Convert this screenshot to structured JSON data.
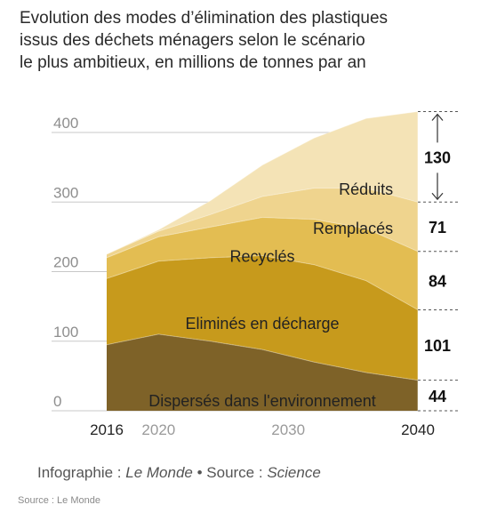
{
  "title_lines": [
    "Evolution des modes d’élimination des plastiques",
    "issus des déchets ménagers selon le scénario",
    "le plus ambitieux, en millions de tonnes par an"
  ],
  "credit": {
    "prefix": "Infographie : ",
    "outlet": "Le Monde",
    "sep": " • Source : ",
    "source": "Science"
  },
  "footer_source": "Source : Le Monde",
  "colors": {
    "disperses": "#7e6228",
    "elimines": "#c79a1c",
    "recycles": "#e3bd52",
    "remplaces": "#efd48e",
    "reduits": "#f4e3b6",
    "dashed_line": "#555555",
    "grid": "#c8c8c8"
  },
  "chart_data": {
    "type": "area",
    "stacked": true,
    "x": [
      2016,
      2020,
      2024,
      2028,
      2032,
      2036,
      2040
    ],
    "ylim": [
      0,
      400
    ],
    "yticks": [
      0,
      100,
      200,
      300,
      400
    ],
    "xticks": [
      {
        "value": 2016,
        "label": "2016",
        "strong": true
      },
      {
        "value": 2020,
        "label": "2020",
        "strong": false
      },
      {
        "value": 2030,
        "label": "2030",
        "strong": false
      },
      {
        "value": 2040,
        "label": "2040",
        "strong": true
      }
    ],
    "series": [
      {
        "name": "Dispersés dans l'environnement",
        "key": "disperses",
        "values": [
          95,
          110,
          100,
          88,
          70,
          55,
          44
        ],
        "label_at": [
          2028,
          14
        ]
      },
      {
        "name": "Eliminés en décharge",
        "key": "elimines",
        "values": [
          95,
          105,
          120,
          135,
          140,
          132,
          101
        ],
        "label_at": [
          2028,
          125
        ]
      },
      {
        "name": "Recyclés",
        "key": "recycles",
        "values": [
          30,
          35,
          44,
          55,
          65,
          75,
          84
        ],
        "label_at": [
          2028,
          222
        ]
      },
      {
        "name": "Remplacés",
        "key": "remplaces",
        "values": [
          5,
          8,
          18,
          30,
          45,
          58,
          71
        ],
        "label_at": [
          2035,
          262
        ]
      },
      {
        "name": "Réduits",
        "key": "reduits",
        "values": [
          0,
          2,
          20,
          45,
          72,
          100,
          130
        ],
        "label_at": [
          2036,
          318
        ]
      }
    ],
    "end_values": [
      {
        "label": "130",
        "series": "reduits"
      },
      {
        "label": "71",
        "series": "remplaces"
      },
      {
        "label": "84",
        "series": "recycles"
      },
      {
        "label": "101",
        "series": "elimines"
      },
      {
        "label": "44",
        "series": "disperses"
      }
    ]
  }
}
